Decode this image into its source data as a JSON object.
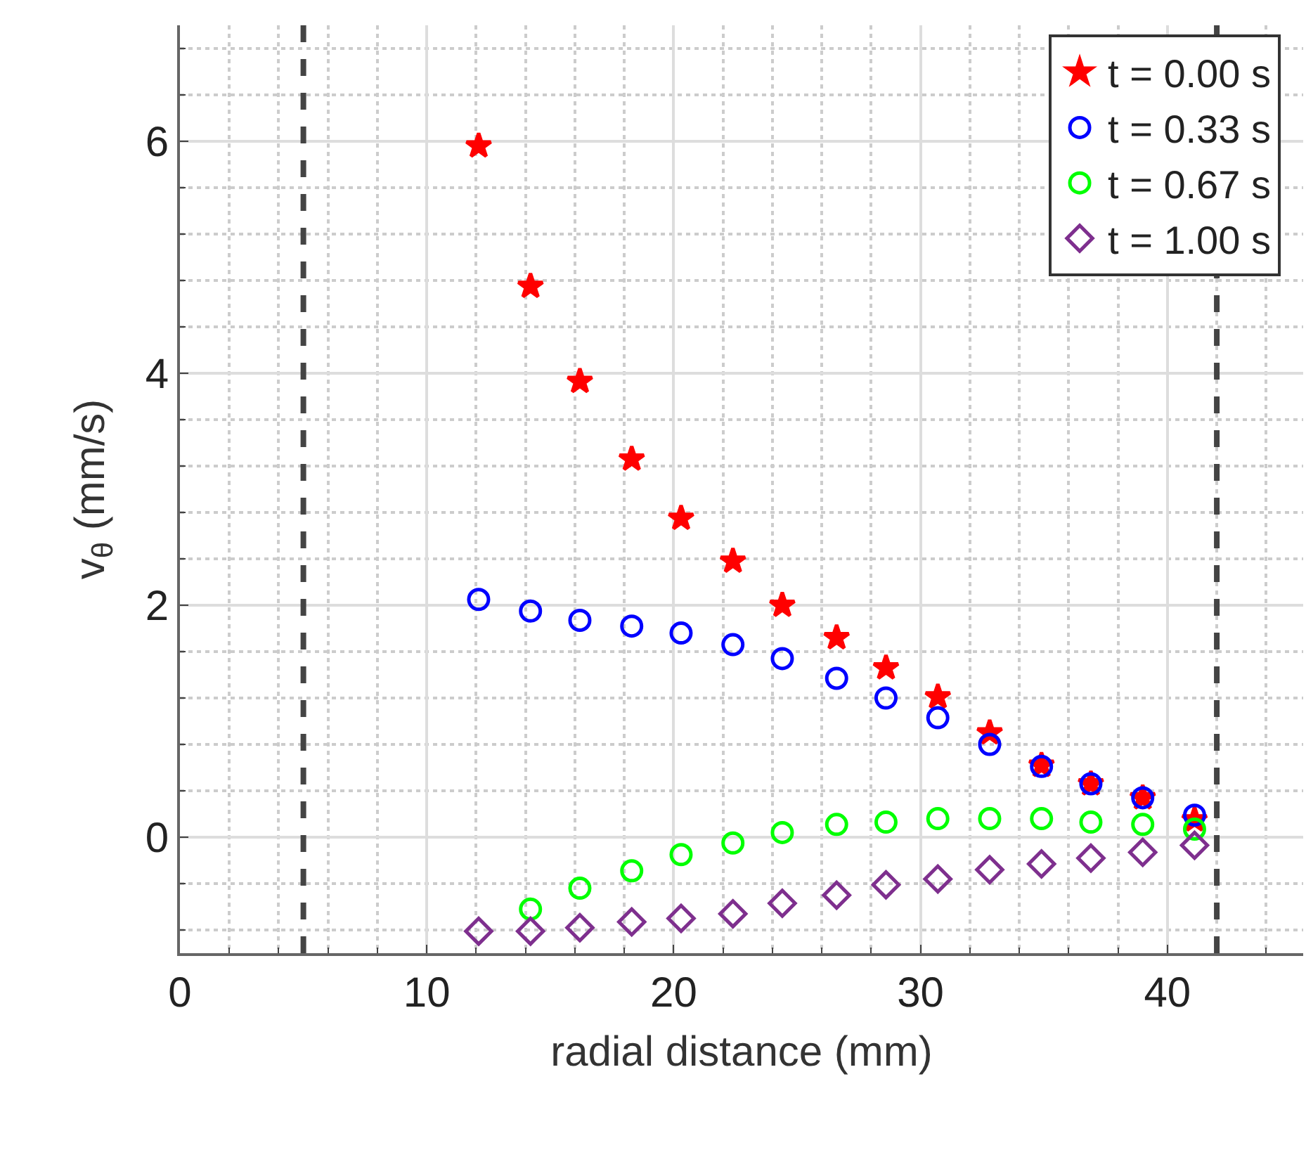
{
  "chart_data": {
    "type": "scatter",
    "xlabel": "radial distance (mm)",
    "ylabel": "v$_{θ}$ (mm/s)",
    "x": [
      12.1,
      14.2,
      16.2,
      18.3,
      20.3,
      22.4,
      24.4,
      26.6,
      28.6,
      30.7,
      32.8,
      34.9,
      36.9,
      39.0,
      41.1
    ],
    "series": [
      {
        "name": "t = 0.00 s",
        "color": "#ff0000",
        "marker": "star",
        "values": [
          5.96,
          4.75,
          3.93,
          3.26,
          2.75,
          2.38,
          2.0,
          1.72,
          1.46,
          1.21,
          0.9,
          0.62,
          0.46,
          0.34,
          0.15
        ]
      },
      {
        "name": "t = 0.33 s",
        "color": "#0000ff",
        "marker": "circle",
        "values": [
          2.05,
          1.95,
          1.87,
          1.82,
          1.76,
          1.66,
          1.54,
          1.37,
          1.2,
          1.03,
          0.8,
          0.61,
          0.46,
          0.34,
          0.19
        ]
      },
      {
        "name": "t = 0.67 s",
        "color": "#00ff00",
        "marker": "circle",
        "values": [
          null,
          -0.62,
          -0.44,
          -0.29,
          -0.15,
          -0.05,
          0.04,
          0.11,
          0.13,
          0.16,
          0.16,
          0.16,
          0.13,
          0.11,
          0.07
        ]
      },
      {
        "name": "t = 1.00 s",
        "color": "#7e2f8e",
        "marker": "diamond",
        "values": [
          -0.81,
          -0.81,
          -0.78,
          -0.73,
          -0.7,
          -0.66,
          -0.57,
          -0.5,
          -0.41,
          -0.36,
          -0.28,
          -0.23,
          -0.18,
          -0.13,
          -0.07
        ]
      }
    ],
    "xlim": [
      0,
      45.5
    ],
    "xticks": [
      0,
      10,
      20,
      30,
      40
    ],
    "ylim": [
      -1,
      7
    ],
    "yticks": [
      0,
      2,
      4,
      6
    ],
    "ref_lines": [
      {
        "axis": "x",
        "value": 5,
        "color": "#444444",
        "line_style": "dashed"
      },
      {
        "axis": "x",
        "value": 42,
        "color": "#444444",
        "line_style": "dashed"
      }
    ],
    "grid": true,
    "legend": "top right"
  }
}
